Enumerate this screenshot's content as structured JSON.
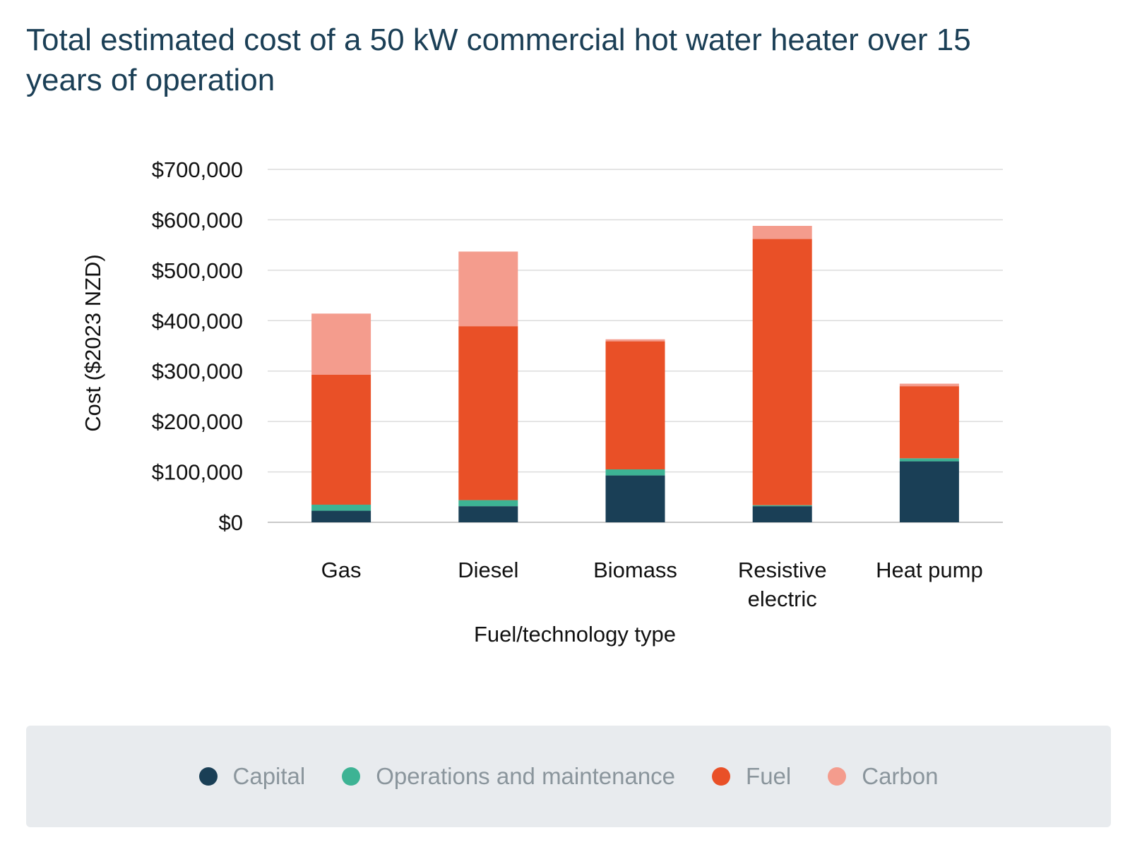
{
  "chart_data": {
    "type": "bar",
    "stacked": true,
    "title": "Total estimated cost of a 50 kW commercial hot water heater over 15 years of operation",
    "xlabel": "Fuel/technology type",
    "ylabel": "Cost ($2023 NZD)",
    "ylim": [
      0,
      700000
    ],
    "yticks": [
      0,
      100000,
      200000,
      300000,
      400000,
      500000,
      600000,
      700000
    ],
    "ytick_labels": [
      "$0",
      "$100,000",
      "$200,000",
      "$300,000",
      "$400,000",
      "$500,000",
      "$600,000",
      "$700,000"
    ],
    "categories": [
      "Gas",
      "Diesel",
      "Biomass",
      "Resistive electric",
      "Heat pump"
    ],
    "category_lines": [
      [
        "Gas"
      ],
      [
        "Diesel"
      ],
      [
        "Biomass"
      ],
      [
        "Resistive",
        "electric"
      ],
      [
        "Heat pump"
      ]
    ],
    "series": [
      {
        "name": "Capital",
        "color": "#1a3f56",
        "values": [
          23000,
          32000,
          93000,
          32000,
          121000
        ]
      },
      {
        "name": "Operations and maintenance",
        "color": "#3db394",
        "values": [
          12000,
          12000,
          12000,
          2000,
          6000
        ]
      },
      {
        "name": "Fuel",
        "color": "#e95027",
        "values": [
          258000,
          345000,
          254000,
          528000,
          143000
        ]
      },
      {
        "name": "Carbon",
        "color": "#f49c8d",
        "values": [
          121000,
          148000,
          4000,
          26000,
          5000
        ]
      }
    ],
    "grid": true,
    "legend_position": "bottom"
  }
}
